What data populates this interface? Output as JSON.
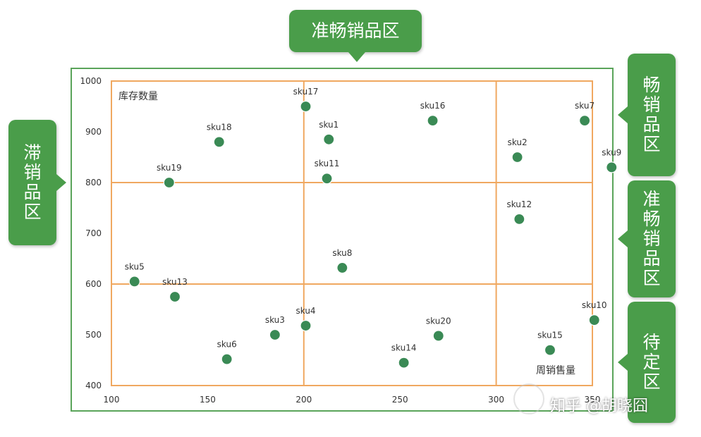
{
  "chart_data": {
    "type": "scatter",
    "ylabel": "库存数量",
    "xlabel": "周销售量",
    "xlim": [
      100,
      350
    ],
    "ylim": [
      400,
      1000
    ],
    "x_ticks": [
      "100",
      "150",
      "200",
      "250",
      "300",
      "350"
    ],
    "y_ticks": [
      "400",
      "500",
      "600",
      "700",
      "800",
      "900",
      "1000"
    ],
    "x_dividers": [
      200,
      300
    ],
    "y_dividers": [
      600,
      800
    ],
    "grid": false,
    "point_color": "#3a8a55",
    "divider_color": "#f0a860",
    "points": [
      {
        "label": "sku1",
        "x": 213,
        "y": 885
      },
      {
        "label": "sku2",
        "x": 311,
        "y": 850
      },
      {
        "label": "sku3",
        "x": 185,
        "y": 500
      },
      {
        "label": "sku4",
        "x": 201,
        "y": 518
      },
      {
        "label": "sku5",
        "x": 112,
        "y": 605
      },
      {
        "label": "sku6",
        "x": 160,
        "y": 452
      },
      {
        "label": "sku7",
        "x": 346,
        "y": 922
      },
      {
        "label": "sku8",
        "x": 220,
        "y": 632
      },
      {
        "label": "sku9",
        "x": 360,
        "y": 830
      },
      {
        "label": "sku10",
        "x": 351,
        "y": 529
      },
      {
        "label": "sku11",
        "x": 212,
        "y": 808
      },
      {
        "label": "sku12",
        "x": 312,
        "y": 728
      },
      {
        "label": "sku13",
        "x": 133,
        "y": 575
      },
      {
        "label": "sku14",
        "x": 252,
        "y": 445
      },
      {
        "label": "sku15",
        "x": 328,
        "y": 470
      },
      {
        "label": "sku16",
        "x": 267,
        "y": 922
      },
      {
        "label": "sku17",
        "x": 201,
        "y": 950
      },
      {
        "label": "sku18",
        "x": 156,
        "y": 880
      },
      {
        "label": "sku19",
        "x": 130,
        "y": 800
      },
      {
        "label": "sku20",
        "x": 270,
        "y": 498
      }
    ]
  },
  "zones": {
    "top": "准畅销品区",
    "left": "滞\n销\n品\n区",
    "right_1": "畅\n销\n品\n区",
    "right_2": "准\n畅\n销\n品\n区",
    "right_3": "待\n定\n区"
  },
  "zone_color": "#4a9d4a",
  "watermark": "知乎 @胡晓囧"
}
